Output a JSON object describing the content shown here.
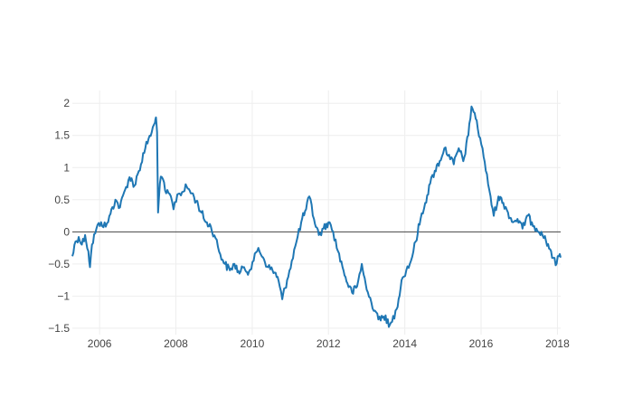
{
  "chart_data": {
    "type": "line",
    "title": "",
    "xlabel": "",
    "ylabel": "",
    "x_axis": {
      "type": "date",
      "range": [
        "2005-04-15",
        "2018-02-01"
      ],
      "ticks": [
        {
          "value": "2006-01-01",
          "label": "2006"
        },
        {
          "value": "2008-01-01",
          "label": "2008"
        },
        {
          "value": "2010-01-01",
          "label": "2010"
        },
        {
          "value": "2012-01-01",
          "label": "2012"
        },
        {
          "value": "2014-01-01",
          "label": "2014"
        },
        {
          "value": "2016-01-01",
          "label": "2016"
        },
        {
          "value": "2018-01-01",
          "label": "2018"
        }
      ],
      "grid": true
    },
    "y_axis": {
      "range": [
        -1.6,
        2.2
      ],
      "ticks": [
        {
          "value": 2,
          "label": "2"
        },
        {
          "value": 1.5,
          "label": "1.5"
        },
        {
          "value": 1,
          "label": "1"
        },
        {
          "value": 0.5,
          "label": "0.5"
        },
        {
          "value": 0,
          "label": "0"
        },
        {
          "value": -0.5,
          "label": "−0.5"
        },
        {
          "value": -1,
          "label": "−1"
        },
        {
          "value": -1.5,
          "label": "−1.5"
        }
      ],
      "grid": true,
      "zeroline": true
    },
    "series": [
      {
        "color": "#1f77b4",
        "points": [
          [
            "2005-04-15",
            -0.38
          ],
          [
            "2005-05-15",
            -0.15
          ],
          [
            "2005-06-15",
            -0.08
          ],
          [
            "2005-07-15",
            -0.2
          ],
          [
            "2005-08-15",
            -0.05
          ],
          [
            "2005-09-15",
            -0.3
          ],
          [
            "2005-10-01",
            -0.55
          ],
          [
            "2005-10-20",
            -0.2
          ],
          [
            "2005-12-01",
            0.05
          ],
          [
            "2006-01-15",
            0.15
          ],
          [
            "2006-03-01",
            0.08
          ],
          [
            "2006-04-15",
            0.28
          ],
          [
            "2006-06-01",
            0.5
          ],
          [
            "2006-07-15",
            0.38
          ],
          [
            "2006-09-01",
            0.65
          ],
          [
            "2006-10-15",
            0.85
          ],
          [
            "2006-12-01",
            0.72
          ],
          [
            "2007-01-01",
            0.9
          ],
          [
            "2007-02-01",
            1.05
          ],
          [
            "2007-03-15",
            1.3
          ],
          [
            "2007-04-15",
            1.45
          ],
          [
            "2007-05-15",
            1.55
          ],
          [
            "2007-06-15",
            1.7
          ],
          [
            "2007-06-25",
            1.78
          ],
          [
            "2007-07-05",
            1.55
          ],
          [
            "2007-07-15",
            0.3
          ],
          [
            "2007-08-01",
            0.75
          ],
          [
            "2007-08-20",
            0.85
          ],
          [
            "2007-10-01",
            0.6
          ],
          [
            "2007-11-15",
            0.55
          ],
          [
            "2007-12-10",
            0.35
          ],
          [
            "2008-01-15",
            0.58
          ],
          [
            "2008-03-01",
            0.62
          ],
          [
            "2008-04-15",
            0.7
          ],
          [
            "2008-06-01",
            0.6
          ],
          [
            "2008-07-15",
            0.48
          ],
          [
            "2008-09-01",
            0.3
          ],
          [
            "2008-10-15",
            0.15
          ],
          [
            "2008-12-01",
            0.08
          ],
          [
            "2009-01-15",
            -0.1
          ],
          [
            "2009-03-01",
            -0.35
          ],
          [
            "2009-04-15",
            -0.5
          ],
          [
            "2009-06-01",
            -0.6
          ],
          [
            "2009-07-15",
            -0.5
          ],
          [
            "2009-09-01",
            -0.65
          ],
          [
            "2009-10-15",
            -0.55
          ],
          [
            "2009-12-01",
            -0.62
          ],
          [
            "2010-01-15",
            -0.45
          ],
          [
            "2010-03-01",
            -0.25
          ],
          [
            "2010-04-15",
            -0.4
          ],
          [
            "2010-06-01",
            -0.55
          ],
          [
            "2010-07-15",
            -0.6
          ],
          [
            "2010-09-01",
            -0.7
          ],
          [
            "2010-10-15",
            -1.05
          ],
          [
            "2010-12-01",
            -0.75
          ],
          [
            "2011-01-15",
            -0.45
          ],
          [
            "2011-03-01",
            -0.15
          ],
          [
            "2011-04-15",
            0.15
          ],
          [
            "2011-06-01",
            0.35
          ],
          [
            "2011-07-01",
            0.55
          ],
          [
            "2011-08-15",
            0.2
          ],
          [
            "2011-10-01",
            -0.05
          ],
          [
            "2011-11-15",
            0.05
          ],
          [
            "2012-01-01",
            0.15
          ],
          [
            "2012-02-15",
            0.0
          ],
          [
            "2012-04-01",
            -0.3
          ],
          [
            "2012-05-15",
            -0.55
          ],
          [
            "2012-07-01",
            -0.8
          ],
          [
            "2012-08-15",
            -0.95
          ],
          [
            "2012-10-01",
            -0.85
          ],
          [
            "2012-11-15",
            -0.5
          ],
          [
            "2013-01-01",
            -0.9
          ],
          [
            "2013-02-15",
            -1.1
          ],
          [
            "2013-04-01",
            -1.25
          ],
          [
            "2013-05-15",
            -1.38
          ],
          [
            "2013-07-01",
            -1.3
          ],
          [
            "2013-08-01",
            -1.48
          ],
          [
            "2013-09-01",
            -1.4
          ],
          [
            "2013-10-15",
            -1.2
          ],
          [
            "2013-12-01",
            -0.75
          ],
          [
            "2014-01-15",
            -0.6
          ],
          [
            "2014-03-01",
            -0.45
          ],
          [
            "2014-04-15",
            -0.15
          ],
          [
            "2014-06-01",
            0.2
          ],
          [
            "2014-07-15",
            0.45
          ],
          [
            "2014-09-01",
            0.75
          ],
          [
            "2014-10-15",
            0.95
          ],
          [
            "2014-12-01",
            1.1
          ],
          [
            "2015-01-15",
            1.3
          ],
          [
            "2015-03-01",
            1.2
          ],
          [
            "2015-04-15",
            1.05
          ],
          [
            "2015-06-01",
            1.3
          ],
          [
            "2015-07-15",
            1.1
          ],
          [
            "2015-09-01",
            1.5
          ],
          [
            "2015-10-01",
            1.95
          ],
          [
            "2015-11-01",
            1.85
          ],
          [
            "2015-12-01",
            1.6
          ],
          [
            "2016-01-15",
            1.3
          ],
          [
            "2016-02-15",
            0.95
          ],
          [
            "2016-04-01",
            0.55
          ],
          [
            "2016-05-01",
            0.25
          ],
          [
            "2016-06-15",
            0.55
          ],
          [
            "2016-08-01",
            0.45
          ],
          [
            "2016-09-15",
            0.3
          ],
          [
            "2016-11-01",
            0.15
          ],
          [
            "2016-12-15",
            0.2
          ],
          [
            "2017-02-01",
            0.05
          ],
          [
            "2017-03-15",
            0.25
          ],
          [
            "2017-05-01",
            0.15
          ],
          [
            "2017-06-15",
            0.05
          ],
          [
            "2017-08-01",
            0.0
          ],
          [
            "2017-09-15",
            -0.15
          ],
          [
            "2017-11-01",
            -0.3
          ],
          [
            "2017-12-15",
            -0.52
          ],
          [
            "2018-01-15",
            -0.38
          ],
          [
            "2018-02-01",
            -0.4
          ]
        ]
      }
    ]
  },
  "colors": {
    "line": "#1f77b4",
    "grid": "#eeeeee",
    "zeroline": "#444444",
    "tick_text": "#444444",
    "background": "#ffffff"
  }
}
